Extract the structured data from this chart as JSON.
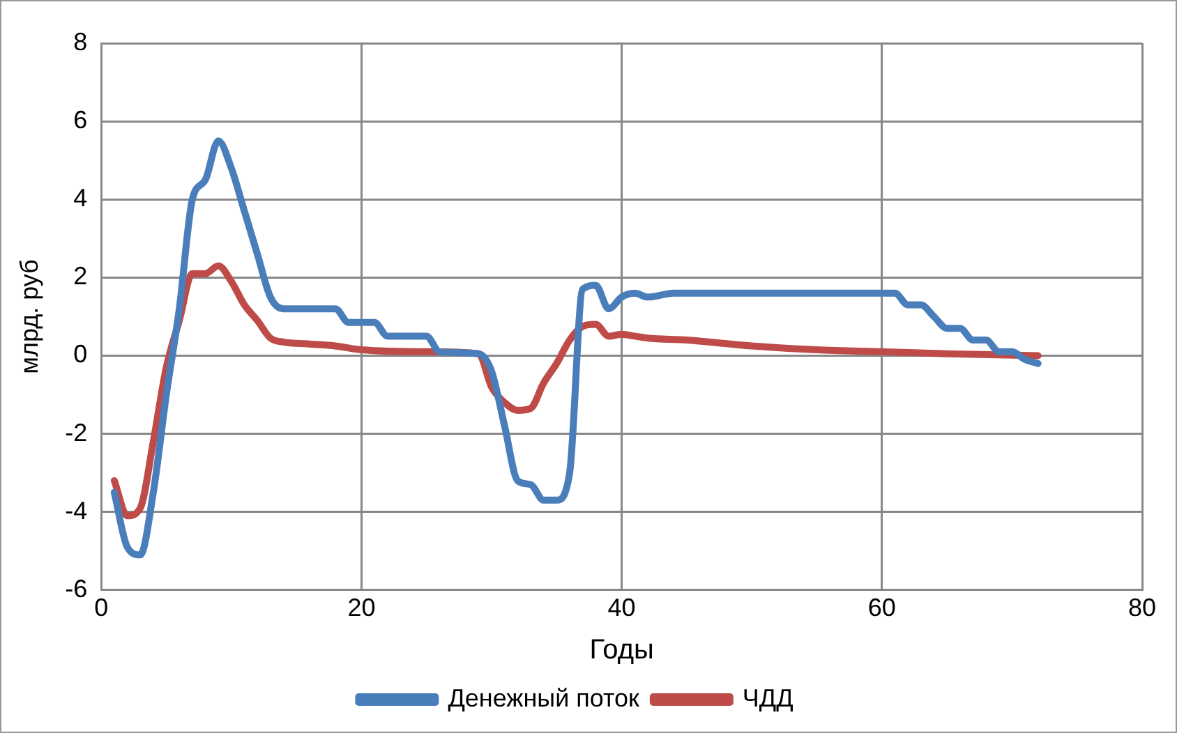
{
  "chart_data": {
    "type": "line",
    "xlabel": "Годы",
    "ylabel": "млрд. руб",
    "xlim": [
      0,
      80
    ],
    "xticks": [
      0,
      20,
      40,
      60,
      80
    ],
    "ylim": [
      -6,
      8
    ],
    "yticks": [
      -6,
      -4,
      -2,
      0,
      2,
      4,
      6,
      8
    ],
    "grid": true,
    "legend": "bottom",
    "marker": "none",
    "line_style": "solid",
    "series": [
      {
        "name": "Денежный поток",
        "color": "#4a7ebb",
        "x": [
          1,
          2,
          3,
          4,
          5,
          6,
          7,
          8,
          9,
          10,
          11,
          12,
          13,
          14,
          16,
          18,
          19,
          21,
          22,
          25,
          26,
          29,
          30,
          31,
          32,
          33,
          34,
          35,
          36,
          37,
          38,
          39,
          40,
          41,
          42,
          44,
          61,
          62,
          63,
          64,
          65,
          66,
          67,
          68,
          69,
          70,
          71,
          72
        ],
        "values": [
          -3.5,
          -4.9,
          -5.1,
          -3.5,
          -1.0,
          1.2,
          4.0,
          4.5,
          5.5,
          4.8,
          3.7,
          2.6,
          1.5,
          1.2,
          1.2,
          1.2,
          0.85,
          0.85,
          0.5,
          0.5,
          0.1,
          0.05,
          -0.4,
          -1.8,
          -3.2,
          -3.3,
          -3.7,
          -3.7,
          -3.0,
          1.7,
          1.8,
          1.2,
          1.5,
          1.6,
          1.5,
          1.6,
          1.6,
          1.3,
          1.3,
          1.0,
          0.7,
          0.7,
          0.4,
          0.4,
          0.1,
          0.1,
          -0.1,
          -0.2
        ]
      },
      {
        "name": "ЧДД",
        "color": "#be4b48",
        "x": [
          1,
          2,
          3,
          4,
          5,
          6,
          7,
          8,
          9,
          10,
          11,
          12,
          13,
          14,
          16,
          18,
          20,
          25,
          29,
          30,
          31,
          32,
          33,
          34,
          35,
          36,
          37,
          38,
          39,
          40,
          41,
          42,
          45,
          50,
          55,
          60,
          65,
          72
        ],
        "values": [
          -3.2,
          -4.1,
          -3.9,
          -2.2,
          -0.3,
          0.9,
          2.1,
          2.1,
          2.3,
          1.9,
          1.3,
          0.9,
          0.45,
          0.35,
          0.3,
          0.25,
          0.15,
          0.1,
          0.05,
          -0.8,
          -1.2,
          -1.4,
          -1.35,
          -0.7,
          -0.2,
          0.4,
          0.75,
          0.8,
          0.5,
          0.55,
          0.5,
          0.45,
          0.4,
          0.25,
          0.15,
          0.1,
          0.05,
          0.0
        ]
      }
    ]
  }
}
